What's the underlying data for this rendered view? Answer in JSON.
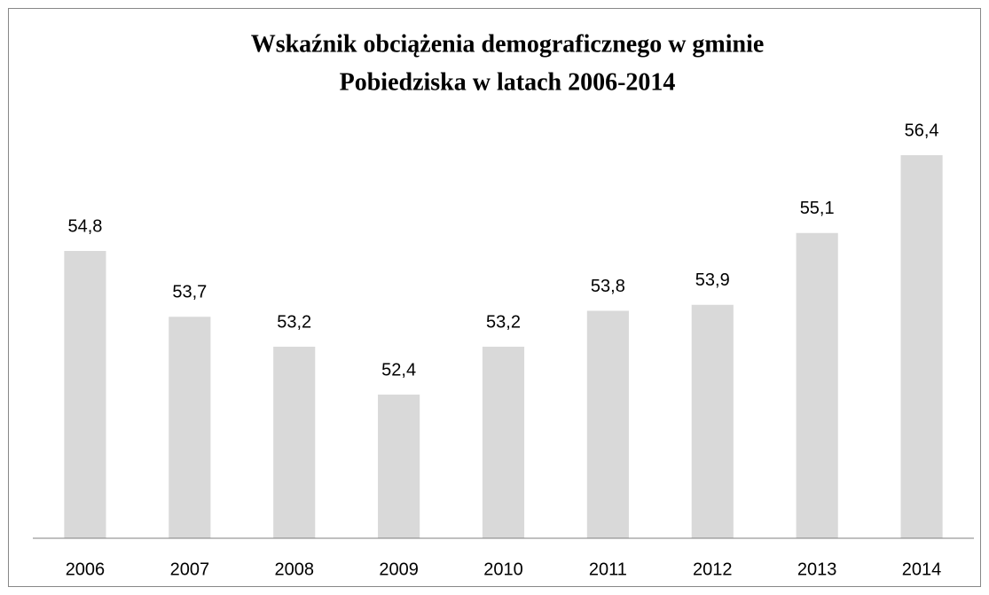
{
  "chart_data": {
    "type": "bar",
    "title": [
      "Wskaźnik obciążenia demograficznego w gminie",
      "Pobiedziska w latach 2006-2014"
    ],
    "categories": [
      "2006",
      "2007",
      "2008",
      "2009",
      "2010",
      "2011",
      "2012",
      "2013",
      "2014"
    ],
    "values": [
      54.8,
      53.7,
      53.2,
      52.4,
      53.2,
      53.8,
      53.9,
      55.1,
      56.4
    ],
    "value_labels": [
      "54,8",
      "53,7",
      "53,2",
      "52,4",
      "53,2",
      "53,8",
      "53,9",
      "55,1",
      "56,4"
    ],
    "color": "#d9d9d9",
    "ylim": [
      50,
      57
    ]
  }
}
